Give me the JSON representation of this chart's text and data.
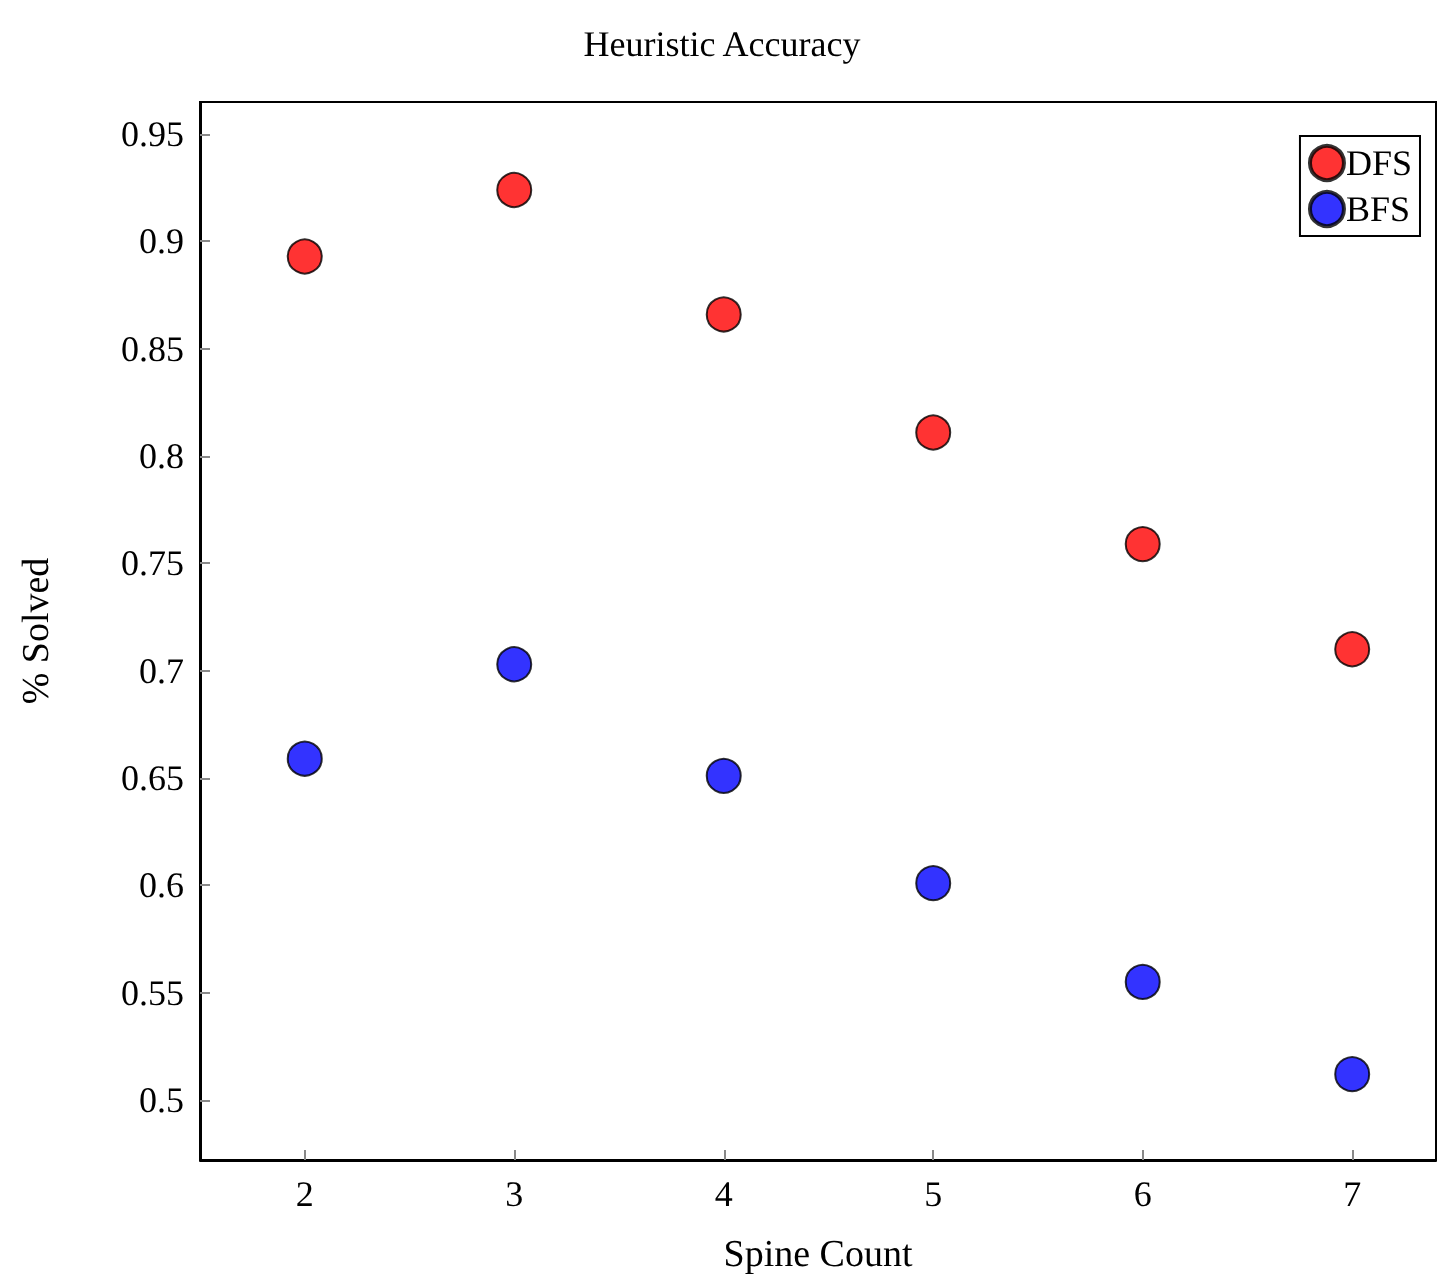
{
  "chart_data": {
    "type": "scatter",
    "title": "Heuristic Accuracy",
    "xlabel": "Spine Count",
    "ylabel": "% Solved",
    "x": [
      2,
      3,
      4,
      5,
      6,
      7
    ],
    "series": [
      {
        "name": "DFS",
        "color": "#ff0000",
        "values": [
          0.893,
          0.924,
          0.866,
          0.811,
          0.759,
          0.71
        ]
      },
      {
        "name": "BFS",
        "color": "#0000ff",
        "values": [
          0.659,
          0.703,
          0.651,
          0.601,
          0.555,
          0.512
        ]
      }
    ],
    "xlim": [
      1.5,
      7.4
    ],
    "xticks": [
      2,
      3,
      4,
      5,
      6,
      7
    ],
    "ylim": [
      0.472,
      0.965
    ],
    "yticks": [
      0.5,
      0.55,
      0.6,
      0.65,
      0.7,
      0.75,
      0.8,
      0.85,
      0.9,
      0.95
    ],
    "grid": false,
    "legend": "top right",
    "marker": "circle"
  }
}
